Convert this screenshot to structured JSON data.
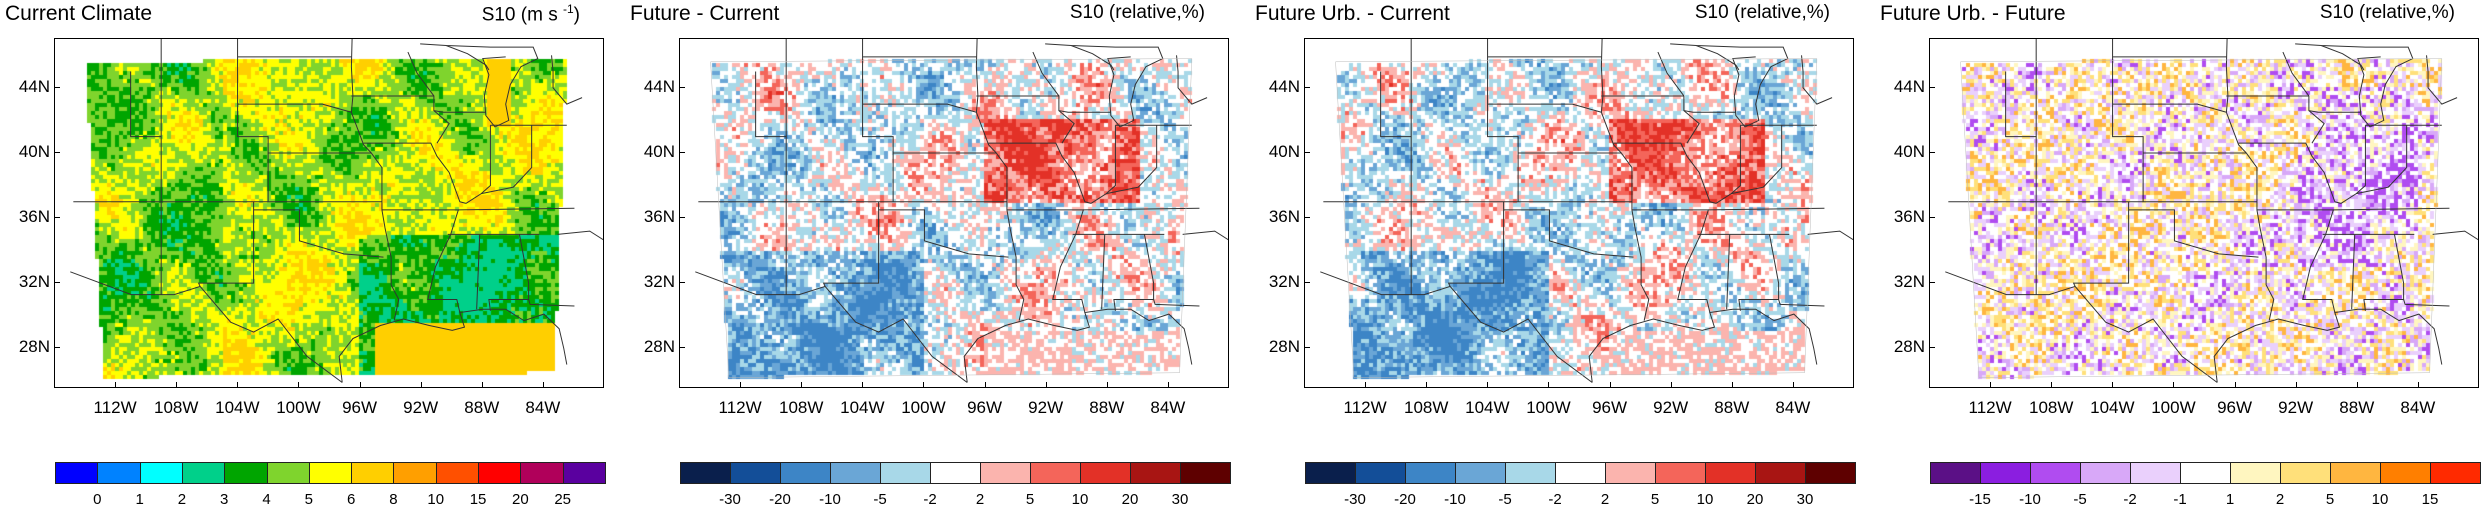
{
  "chart_data": [
    {
      "type": "heatmap",
      "title": "Current Climate",
      "variable": "S10 (m s⁻¹)",
      "variable_base": "S10 (m s",
      "variable_sup": "-1",
      "variable_close": ")",
      "lon_range": [
        -114,
        -82
      ],
      "lat_range": [
        26,
        46
      ],
      "xticks": [
        "112W",
        "108W",
        "104W",
        "100W",
        "96W",
        "92W",
        "88W",
        "84W"
      ],
      "yticks": [
        "44N",
        "40N",
        "36N",
        "32N",
        "28N"
      ],
      "colorbar": {
        "labels": [
          "0",
          "1",
          "2",
          "3",
          "4",
          "5",
          "6",
          "8",
          "10",
          "15",
          "20",
          "25"
        ],
        "colors": [
          "#0000ff",
          "#0082ff",
          "#00ffff",
          "#00d08a",
          "#00a500",
          "#7fd42d",
          "#ffff00",
          "#ffcf00",
          "#ff9f00",
          "#ff5000",
          "#ff0000",
          "#b0005a",
          "#5a009f"
        ]
      },
      "pattern": "wind"
    },
    {
      "type": "heatmap",
      "title": "Future - Current",
      "variable": "S10 (relative,%)",
      "lon_range": [
        -114,
        -82
      ],
      "lat_range": [
        26,
        46
      ],
      "xticks": [
        "112W",
        "108W",
        "104W",
        "100W",
        "96W",
        "92W",
        "88W",
        "84W"
      ],
      "yticks": [
        "44N",
        "40N",
        "36N",
        "32N",
        "28N"
      ],
      "colorbar": {
        "labels": [
          "-30",
          "-20",
          "-10",
          "-5",
          "-2",
          "2",
          "5",
          "10",
          "20",
          "30"
        ],
        "colors": [
          "#0a1f4c",
          "#134e98",
          "#3d85c6",
          "#6aa6d6",
          "#a8d8e8",
          "#ffffff",
          "#fbb4ae",
          "#f4655a",
          "#e33127",
          "#a81513",
          "#5e0000"
        ]
      },
      "pattern": "diff"
    },
    {
      "type": "heatmap",
      "title": "Future Urb. - Current",
      "variable": "S10 (relative,%)",
      "lon_range": [
        -114,
        -82
      ],
      "lat_range": [
        26,
        46
      ],
      "xticks": [
        "112W",
        "108W",
        "104W",
        "100W",
        "96W",
        "92W",
        "88W",
        "84W"
      ],
      "yticks": [
        "44N",
        "40N",
        "36N",
        "32N",
        "28N"
      ],
      "colorbar": {
        "labels": [
          "-30",
          "-20",
          "-10",
          "-5",
          "-2",
          "2",
          "5",
          "10",
          "20",
          "30"
        ],
        "colors": [
          "#0a1f4c",
          "#134e98",
          "#3d85c6",
          "#6aa6d6",
          "#a8d8e8",
          "#ffffff",
          "#fbb4ae",
          "#f4655a",
          "#e33127",
          "#a81513",
          "#5e0000"
        ]
      },
      "pattern": "diff2"
    },
    {
      "type": "heatmap",
      "title": "Future Urb. - Future",
      "variable": "S10 (relative,%)",
      "lon_range": [
        -114,
        -82
      ],
      "lat_range": [
        26,
        46
      ],
      "xticks": [
        "112W",
        "108W",
        "104W",
        "100W",
        "96W",
        "92W",
        "88W",
        "84W"
      ],
      "yticks": [
        "44N",
        "40N",
        "36N",
        "32N",
        "28N"
      ],
      "colorbar": {
        "labels": [
          "-15",
          "-10",
          "-5",
          "-2",
          "-1",
          "1",
          "2",
          "5",
          "10",
          "15"
        ],
        "colors": [
          "#5b1086",
          "#8b1ee0",
          "#b04cf0",
          "#d8a8f8",
          "#ead0fc",
          "#ffffff",
          "#fff6c0",
          "#ffe07a",
          "#ffb640",
          "#ff7f00",
          "#ff2a00"
        ]
      },
      "pattern": "urb"
    }
  ]
}
